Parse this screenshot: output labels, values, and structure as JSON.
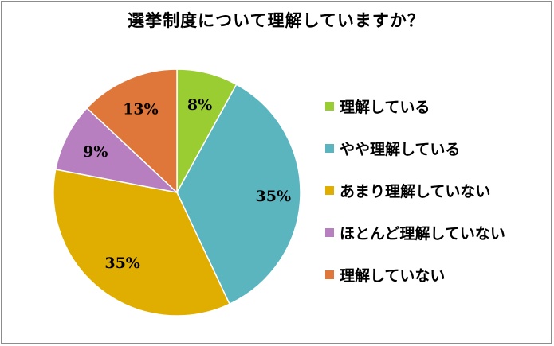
{
  "chart_data": {
    "type": "pie",
    "title": "選挙制度について理解していますか？",
    "categories": [
      "理解している",
      "やや理解している",
      "あまり理解していない",
      "ほとんど理解していない",
      "理解していない"
    ],
    "values": [
      8,
      35,
      35,
      9,
      13
    ],
    "value_labels": [
      "8%",
      "35%",
      "35%",
      "9%",
      "13%"
    ],
    "unit": "%",
    "colors": [
      "#9acd32",
      "#5bb5bf",
      "#e0ae00",
      "#b77fbf",
      "#e0773a"
    ],
    "start": "12 o'clock",
    "direction": "clockwise",
    "legend_position": "right"
  }
}
